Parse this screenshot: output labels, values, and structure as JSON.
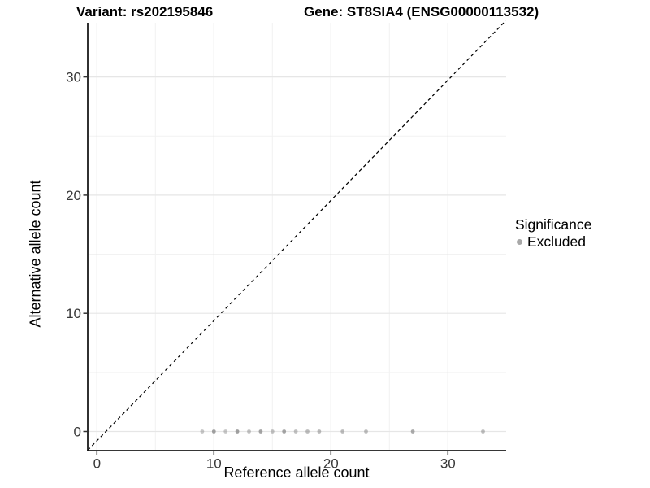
{
  "chart_data": {
    "type": "scatter",
    "title_variant": "Variant: rs202195846",
    "title_gene": "Gene: ST8SIA4 (ENSG00000113532)",
    "xlabel": "Reference allele count",
    "ylabel": "Alternative allele count",
    "x_ticks": [
      0,
      10,
      20,
      30
    ],
    "y_ticks": [
      0,
      10,
      20,
      30
    ],
    "x_minor_ticks": [
      5,
      15,
      25
    ],
    "y_minor_ticks": [
      5,
      15,
      25
    ],
    "xlim": [
      -0.8,
      35.0
    ],
    "ylim": [
      -1.6,
      34.7
    ],
    "grid": true,
    "legend": {
      "title": "Significance",
      "position": "right",
      "items": [
        {
          "label": "Excluded",
          "color": "#a8a8a8",
          "marker": "circle"
        }
      ]
    },
    "reference_line": {
      "type": "identity",
      "slope": 1,
      "intercept": 0,
      "style": "dashed",
      "color": "#000000"
    },
    "series": [
      {
        "name": "Excluded",
        "color": "#8f8f8f",
        "marker": "circle",
        "points": [
          {
            "x": 9,
            "y": 0,
            "alpha": 0.5
          },
          {
            "x": 10,
            "y": 0,
            "alpha": 0.85
          },
          {
            "x": 11,
            "y": 0,
            "alpha": 0.5
          },
          {
            "x": 12,
            "y": 0,
            "alpha": 0.85
          },
          {
            "x": 13,
            "y": 0,
            "alpha": 0.55
          },
          {
            "x": 14,
            "y": 0,
            "alpha": 0.8
          },
          {
            "x": 15,
            "y": 0,
            "alpha": 0.55
          },
          {
            "x": 16,
            "y": 0,
            "alpha": 0.8
          },
          {
            "x": 17,
            "y": 0,
            "alpha": 0.55
          },
          {
            "x": 18,
            "y": 0,
            "alpha": 0.6
          },
          {
            "x": 19,
            "y": 0,
            "alpha": 0.6
          },
          {
            "x": 21,
            "y": 0,
            "alpha": 0.6
          },
          {
            "x": 23,
            "y": 0,
            "alpha": 0.6
          },
          {
            "x": 27,
            "y": 0,
            "alpha": 0.75
          },
          {
            "x": 33,
            "y": 0,
            "alpha": 0.6
          }
        ]
      }
    ],
    "colors": {
      "point": "#8f8f8f",
      "grid_major": "#e6e6e6",
      "grid_minor": "#f2f2f2",
      "axis_line": "#1a1a1a",
      "tick_label": "#383838",
      "background": "#ffffff"
    }
  }
}
